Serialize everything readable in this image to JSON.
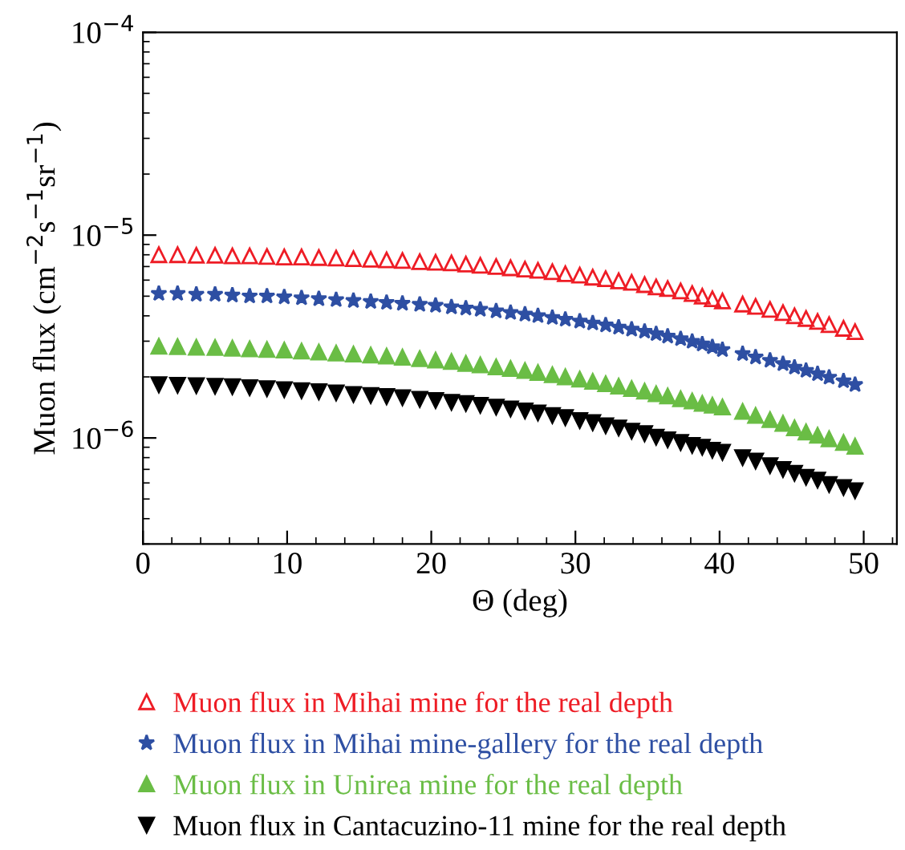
{
  "chart_data": {
    "type": "scatter",
    "xlabel": "Θ (deg)",
    "ylabel": "Muon flux (cm$^{−2}$s$^{−1}$sr$^{−1}$)",
    "log": "y",
    "xlim": [
      0,
      52.3
    ],
    "xticks": [
      0,
      10,
      20,
      30,
      40,
      50
    ],
    "ylim": [
      3e-07,
      0.0001
    ],
    "yticks": [
      {
        "value": 1e-06,
        "label": "10$^{−6}$"
      },
      {
        "value": 1e-05,
        "label": "10$^{−5}$"
      },
      {
        "value": 0.0001,
        "label": "10$^{−4}$"
      }
    ],
    "legend": "bottom",
    "x": [
      1.1,
      2.4,
      3.7,
      5.0,
      6.2,
      7.4,
      8.6,
      9.8,
      11.0,
      12.2,
      13.4,
      14.6,
      15.8,
      16.9,
      18.0,
      19.2,
      20.3,
      21.4,
      22.4,
      23.4,
      24.5,
      25.5,
      26.5,
      27.4,
      28.4,
      29.3,
      30.3,
      31.2,
      32.1,
      33.0,
      33.9,
      34.8,
      35.6,
      36.4,
      37.3,
      38.1,
      38.8,
      39.5,
      40.2,
      41.6,
      42.5,
      43.5,
      44.4,
      45.2,
      46.0,
      46.8,
      47.6,
      48.6,
      49.4
    ],
    "series": [
      {
        "name": "Muon flux in Mihai mine for the real depth",
        "color": "#ee1c25",
        "marker": "triangle-open",
        "values": [
          8e-06,
          8e-06,
          7.95e-06,
          7.95e-06,
          7.9e-06,
          7.9e-06,
          7.85e-06,
          7.8e-06,
          7.8e-06,
          7.75e-06,
          7.7e-06,
          7.65e-06,
          7.6e-06,
          7.55e-06,
          7.5e-06,
          7.4e-06,
          7.35e-06,
          7.3e-06,
          7.2e-06,
          7.1e-06,
          7e-06,
          6.9e-06,
          6.8e-06,
          6.7e-06,
          6.6e-06,
          6.45e-06,
          6.35e-06,
          6.2e-06,
          6.1e-06,
          5.95e-06,
          5.85e-06,
          5.7e-06,
          5.55e-06,
          5.45e-06,
          5.3e-06,
          5.15e-06,
          5e-06,
          4.85e-06,
          4.73e-06,
          4.57e-06,
          4.45e-06,
          4.3e-06,
          4.15e-06,
          4e-06,
          3.88e-06,
          3.75e-06,
          3.62e-06,
          3.47e-06,
          3.34e-06
        ]
      },
      {
        "name": "Muon flux in Mihai mine-gallery for the real depth",
        "color": "#2e4fa3",
        "marker": "star",
        "values": [
          5.15e-06,
          5.15e-06,
          5.1e-06,
          5.1e-06,
          5.05e-06,
          5e-06,
          5e-06,
          4.95e-06,
          4.9e-06,
          4.85e-06,
          4.8e-06,
          4.75e-06,
          4.7e-06,
          4.65e-06,
          4.6e-06,
          4.55e-06,
          4.5e-06,
          4.42e-06,
          4.36e-06,
          4.3e-06,
          4.22e-06,
          4.15e-06,
          4.07e-06,
          4e-06,
          3.92e-06,
          3.84e-06,
          3.76e-06,
          3.68e-06,
          3.6e-06,
          3.51e-06,
          3.43e-06,
          3.35e-06,
          3.26e-06,
          3.17e-06,
          3.08e-06,
          2.99e-06,
          2.9e-06,
          2.81e-06,
          2.72e-06,
          2.6e-06,
          2.5e-06,
          2.41e-06,
          2.32e-06,
          2.23e-06,
          2.15e-06,
          2.07e-06,
          1.99e-06,
          1.91e-06,
          1.83e-06
        ]
      },
      {
        "name": "Muon flux in Unirea mine for the real depth",
        "color": "#6abd45",
        "marker": "triangle",
        "values": [
          2.83e-06,
          2.82e-06,
          2.8e-06,
          2.79e-06,
          2.77e-06,
          2.75e-06,
          2.73e-06,
          2.71e-06,
          2.68e-06,
          2.65e-06,
          2.62e-06,
          2.59e-06,
          2.56e-06,
          2.53e-06,
          2.5e-06,
          2.46e-06,
          2.42e-06,
          2.38e-06,
          2.33e-06,
          2.29e-06,
          2.24e-06,
          2.2e-06,
          2.15e-06,
          2.1e-06,
          2.05e-06,
          2e-06,
          1.95e-06,
          1.9e-06,
          1.85e-06,
          1.8e-06,
          1.75e-06,
          1.7e-06,
          1.65e-06,
          1.61e-06,
          1.56e-06,
          1.52e-06,
          1.48e-06,
          1.45e-06,
          1.42e-06,
          1.35e-06,
          1.29e-06,
          1.23e-06,
          1.18e-06,
          1.12e-06,
          1.07e-06,
          1.03e-06,
          9.9e-07,
          9.5e-07,
          9.1e-07
        ]
      },
      {
        "name": "Muon flux in Cantacuzino-11 mine for the real depth",
        "color": "#000000",
        "marker": "triangle-down",
        "values": [
          1.83e-06,
          1.82e-06,
          1.81e-06,
          1.8e-06,
          1.79e-06,
          1.77e-06,
          1.75e-06,
          1.73e-06,
          1.71e-06,
          1.69e-06,
          1.67e-06,
          1.64e-06,
          1.62e-06,
          1.6e-06,
          1.58e-06,
          1.55e-06,
          1.53e-06,
          1.5e-06,
          1.48e-06,
          1.45e-06,
          1.42e-06,
          1.39e-06,
          1.36e-06,
          1.33e-06,
          1.29e-06,
          1.26e-06,
          1.22e-06,
          1.19e-06,
          1.15e-06,
          1.12e-06,
          1.08e-06,
          1.05e-06,
          1.01e-06,
          9.8e-07,
          9.5e-07,
          9.2e-07,
          9e-07,
          8.7e-07,
          8.5e-07,
          8e-07,
          7.7e-07,
          7.3e-07,
          7e-07,
          6.7e-07,
          6.4e-07,
          6.2e-07,
          5.9e-07,
          5.7e-07,
          5.5e-07
        ]
      }
    ]
  }
}
